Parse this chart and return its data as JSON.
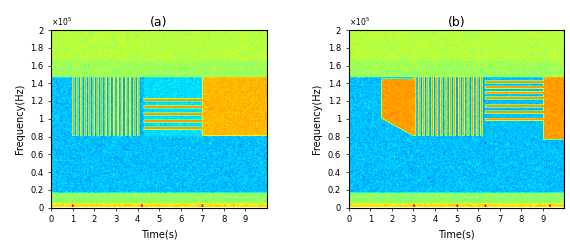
{
  "title_a": "(a)",
  "title_b": "(b)",
  "xlabel": "Time(s)",
  "ylabel": "Frequency(Hz)",
  "xlim": [
    0,
    10
  ],
  "ylim": [
    0,
    200000.0
  ],
  "yticks": [
    0,
    20000.0,
    40000.0,
    60000.0,
    80000.0,
    100000.0,
    120000.0,
    140000.0,
    160000.0,
    180000.0,
    200000.0
  ],
  "ytick_labels": [
    "0",
    "0.2",
    "0.4",
    "0.6",
    "0.8",
    "1",
    "1.2",
    "1.4",
    "1.6",
    "1.8",
    "2"
  ],
  "xticks": [
    0,
    1,
    2,
    3,
    4,
    5,
    6,
    7,
    8,
    9
  ],
  "figsize": [
    5.7,
    2.5
  ],
  "dpi": 100,
  "bg_val": 0.52,
  "yellow_val": 0.82,
  "cyan_val": 0.55,
  "stripe_dark": 0.5,
  "stripe_light": 0.82,
  "top_band_val": 0.7,
  "low_band_val": 0.72,
  "noise_std": 0.03,
  "vmin": 0.3,
  "vmax": 1.0
}
